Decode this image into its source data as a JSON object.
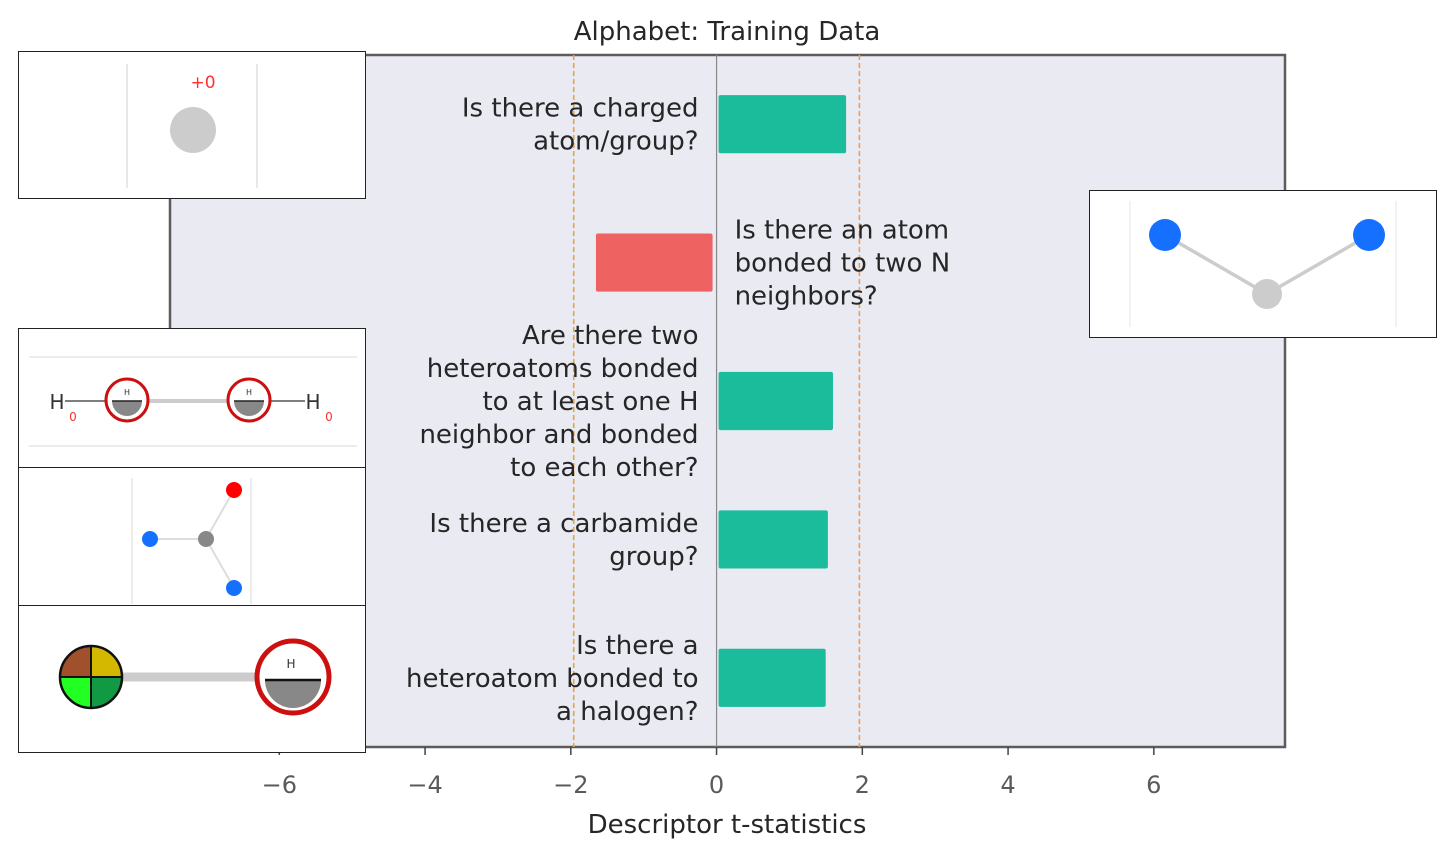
{
  "chart_data": {
    "type": "bar",
    "orientation": "horizontal",
    "title": "Alphabet: Training Data",
    "xlabel": "Descriptor t-statistics",
    "ylabel": "",
    "xlim": [
      -7.5,
      7.8
    ],
    "xticks": [
      -6,
      -4,
      -2,
      0,
      2,
      4,
      6
    ],
    "xtick_labels": [
      "−6",
      "−4",
      "−2",
      "0",
      "2",
      "4",
      "6"
    ],
    "significance_lines": [
      -1.96,
      1.96
    ],
    "grid": false,
    "categories": [
      "Is there a charged atom/group?",
      "Is there an atom bonded to two N neighbors?",
      "Are there two heteroatoms bonded to at least one H neighbor and bonded to each other?",
      "Is there a carbamide group?",
      "Is there a heteroatom bonded to a halogen?"
    ],
    "label_lines": [
      [
        "Is there a charged",
        "atom/group?"
      ],
      [
        "Is there an atom",
        "bonded to two N",
        "neighbors?"
      ],
      [
        "Are there two",
        "heteroatoms bonded",
        "to at least one H",
        "neighbor and bonded",
        "to each other?"
      ],
      [
        "Is there a carbamide",
        "group?"
      ],
      [
        "Is there a",
        "heteroatom bonded to",
        "a halogen?"
      ]
    ],
    "values": [
      1.75,
      -1.6,
      1.57,
      1.5,
      1.47
    ]
  },
  "colors": {
    "positive_bar": "#1abc9c",
    "negative_bar": "#ef6262",
    "plot_background": "#e9eaf2",
    "significance_line": "#f0a040",
    "zero_line": "#888888",
    "frame": "#5c5c5c"
  },
  "insets": {
    "inset1_charge_label": "+0",
    "inset3_atom_labels": [
      "H",
      "0",
      "H",
      "0"
    ],
    "inset3_circle_labels": [
      "H",
      "H"
    ],
    "inset5_circle_label": "H"
  }
}
